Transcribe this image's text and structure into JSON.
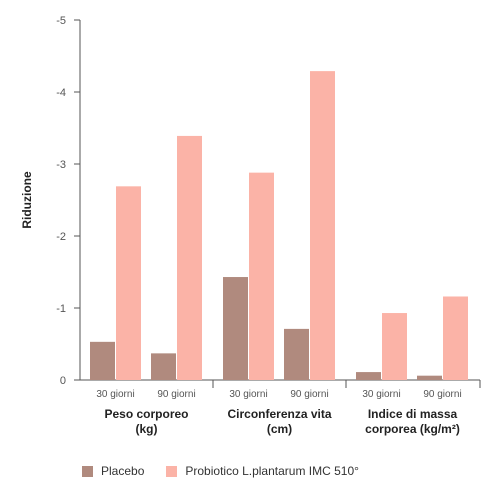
{
  "chart_data": {
    "type": "bar",
    "ylabel": "Riduzione",
    "ylim": [
      0,
      -5
    ],
    "yticks": [
      "0",
      "-1",
      "-2",
      "-3",
      "-4",
      "-5"
    ],
    "groups": [
      {
        "label": "Peso corporeo (kg)",
        "lines": [
          "Peso corporeo",
          "(kg)"
        ],
        "categories": [
          "30 giorni",
          "90 giorni"
        ]
      },
      {
        "label": "Circonferenza vita (cm)",
        "lines": [
          "Circonferenza vita",
          "(cm)"
        ],
        "categories": [
          "30 giorni",
          "90 giorni"
        ]
      },
      {
        "label": "Indice di massa corporea (kg/m²)",
        "lines": [
          "Indice di massa",
          "corporea (kg/m²)"
        ],
        "categories": [
          "30 giorni",
          "90 giorni"
        ]
      }
    ],
    "series": [
      {
        "name": "Placebo",
        "color": "#b08a7e",
        "values": [
          -0.53,
          -0.37,
          -1.43,
          -0.71,
          -0.11,
          -0.06
        ]
      },
      {
        "name": "Probiotico L.plantarum IMC 510°",
        "color": "#fbb3a7",
        "values": [
          -2.69,
          -3.39,
          -2.88,
          -4.29,
          -0.93,
          -1.16
        ]
      }
    ],
    "legend_position": "bottom-left",
    "grid": false
  }
}
